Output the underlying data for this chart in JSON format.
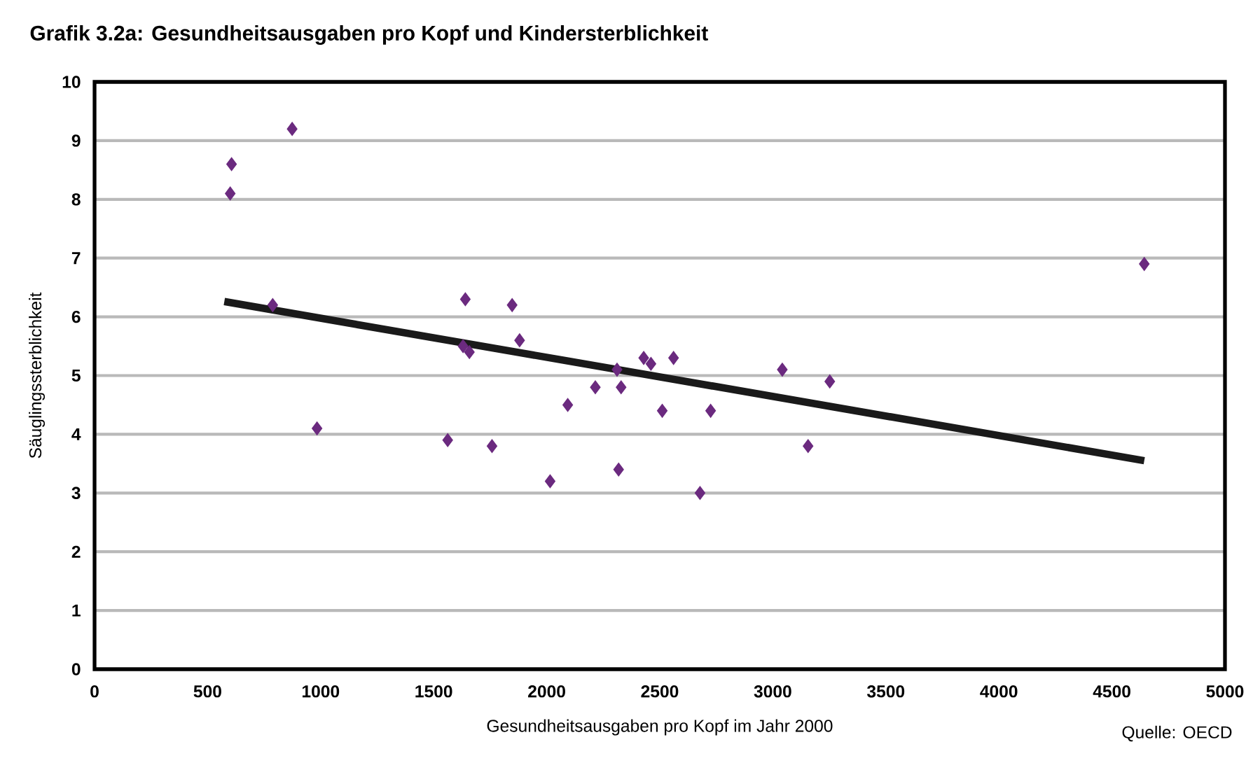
{
  "chart_data": {
    "type": "scatter",
    "title": "Grafik 3.2a: Gesundheitsausgaben pro Kopf und Kindersterblichkeit",
    "xlabel": "Gesundheitsausgaben pro Kopf im Jahr 2000",
    "ylabel": "Säuglingssterblichkeit",
    "annotations": [
      "Quelle: OECD"
    ],
    "xlim": [
      0,
      5000
    ],
    "xticks": [
      0,
      500,
      1000,
      1500,
      2000,
      2500,
      3000,
      3500,
      4000,
      4500,
      5000
    ],
    "ylim": [
      0,
      10
    ],
    "yticks": [
      0,
      1,
      2,
      3,
      4,
      5,
      6,
      7,
      8,
      9,
      10
    ],
    "grid": "y",
    "marker": "diamond",
    "series": [
      {
        "color": "#6b2a7f",
        "x": [
          606,
          600,
          874,
          788,
          984,
          1562,
          1640,
          1630,
          1658,
          1758,
          1847,
          1880,
          2015,
          2093,
          2215,
          2318,
          2329,
          2311,
          2429,
          2461,
          2511,
          2561,
          2678,
          2725,
          3042,
          3156,
          3252,
          4643
        ],
        "values": [
          8.6,
          8.1,
          9.2,
          6.2,
          4.1,
          3.9,
          6.3,
          5.5,
          5.4,
          3.8,
          6.2,
          5.6,
          3.2,
          4.5,
          4.8,
          3.4,
          4.8,
          5.1,
          5.3,
          5.2,
          4.4,
          5.3,
          3.0,
          4.4,
          5.1,
          3.8,
          4.9,
          6.9
        ]
      },
      {
        "type": "line",
        "color": "#1a1a1a",
        "marker": "none",
        "x": [
          574,
          4643
        ],
        "values": [
          6.26,
          3.55
        ]
      }
    ]
  }
}
